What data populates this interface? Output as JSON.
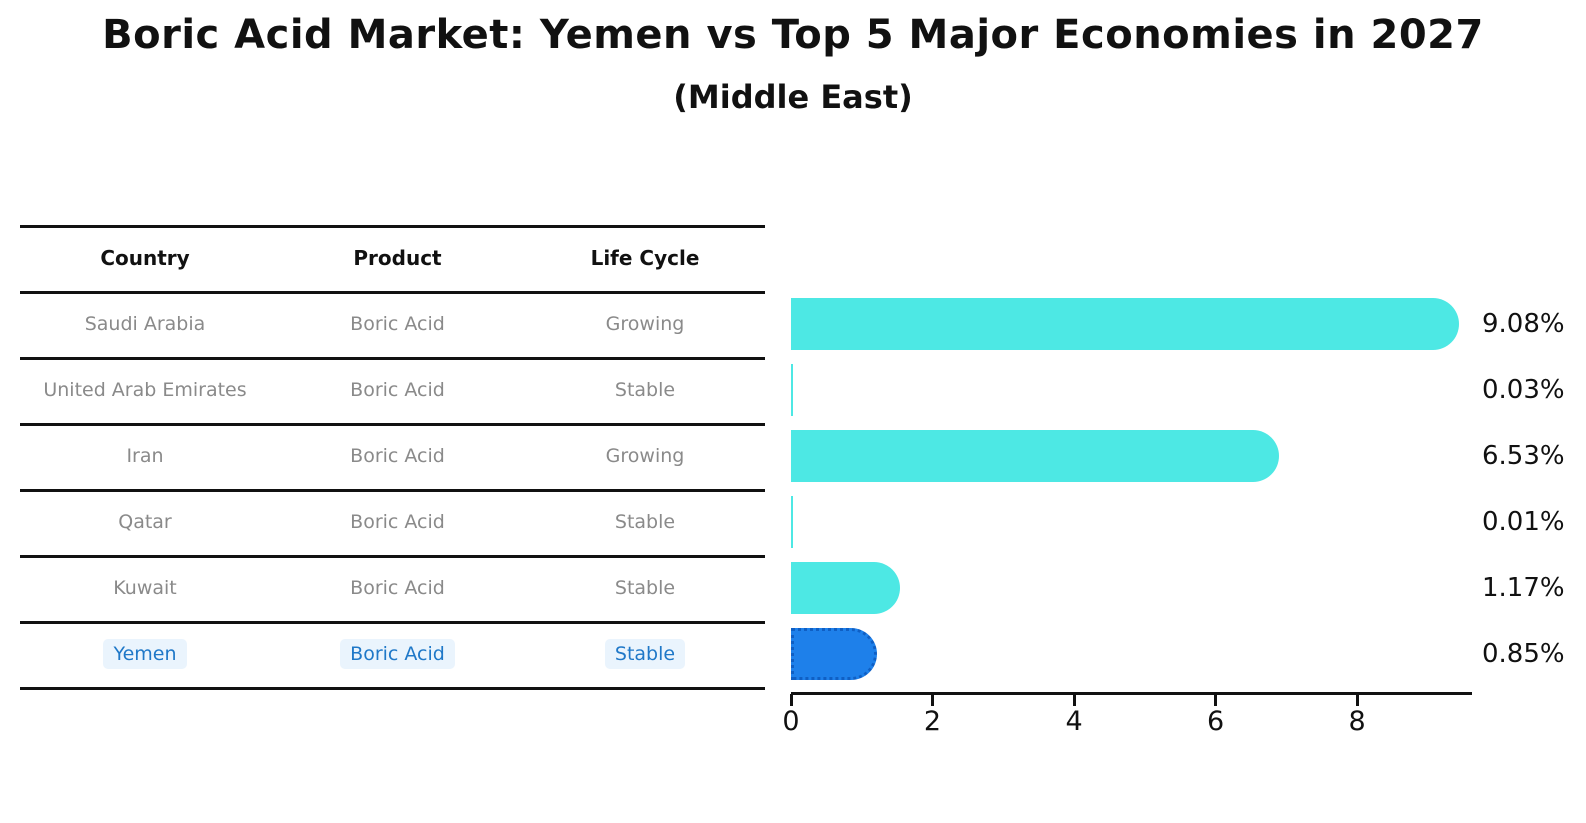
{
  "chart_data": {
    "type": "bar",
    "orientation": "horizontal",
    "title": "Boric Acid Market: Yemen vs Top 5 Major Economies in 2027",
    "subtitle": "(Middle East)",
    "categories": [
      "Saudi Arabia",
      "United Arab Emirates",
      "Iran",
      "Qatar",
      "Kuwait",
      "Yemen"
    ],
    "values": [
      9.08,
      0.03,
      6.53,
      0.01,
      1.17,
      0.85
    ],
    "value_labels": [
      "9.08%",
      "0.03%",
      "6.53%",
      "0.01%",
      "1.17%",
      "0.85%"
    ],
    "unit": "%",
    "xlabel": "",
    "ylabel": "",
    "xticks": [
      0,
      2,
      4,
      6,
      8
    ],
    "xtick_labels": [
      "0",
      "2",
      "4",
      "6",
      "8"
    ],
    "xlim": [
      0,
      9.61
    ],
    "grid": false,
    "legend": false,
    "highlight_index": 5
  },
  "table": {
    "headers": [
      "Country",
      "Product",
      "Life Cycle"
    ],
    "rows": [
      {
        "country": "Saudi Arabia",
        "product": "Boric Acid",
        "life_cycle": "Growing"
      },
      {
        "country": "United Arab Emirates",
        "product": "Boric Acid",
        "life_cycle": "Stable"
      },
      {
        "country": "Iran",
        "product": "Boric Acid",
        "life_cycle": "Growing"
      },
      {
        "country": "Qatar",
        "product": "Boric Acid",
        "life_cycle": "Stable"
      },
      {
        "country": "Kuwait",
        "product": "Boric Acid",
        "life_cycle": "Stable"
      },
      {
        "country": "Yemen",
        "product": "Boric Acid",
        "life_cycle": "Stable"
      }
    ],
    "highlight_row": 5
  },
  "colors": {
    "bar": "#4DE8E4",
    "highlight_bar": "#1E80EA",
    "highlight_border": "#0F5FC4",
    "header_text": "#111111",
    "row_text": "#8A8A8A",
    "highlight_text": "#1F78C8",
    "highlight_text_bg": "#EAF4FD",
    "line": "#111111",
    "value_text": "#111111"
  }
}
